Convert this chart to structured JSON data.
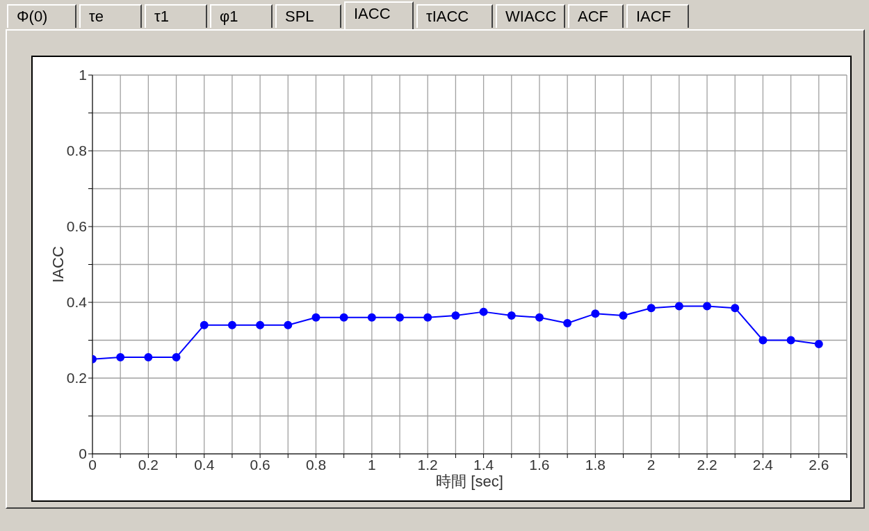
{
  "chart_data": {
    "type": "line",
    "xlabel": "時間 [sec]",
    "ylabel": "IACC",
    "annotations": [
      "Φ(0)",
      "τe",
      "τ1",
      "φ1",
      "SPL",
      "IACC",
      "τIACC",
      "WIACC",
      "ACF",
      "IACF"
    ],
    "x": [
      0,
      0.1,
      0.2,
      0.3,
      0.4,
      0.5,
      0.6,
      0.7,
      0.8,
      0.9,
      1,
      1.1,
      1.2,
      1.3,
      1.4,
      1.5,
      1.6,
      1.7,
      1.8,
      1.9,
      2,
      2.1,
      2.2,
      2.3,
      2.4,
      2.5,
      2.6
    ],
    "series": [
      {
        "color": "#0000ff",
        "values": [
          0.25,
          0.255,
          0.255,
          0.255,
          0.34,
          0.34,
          0.34,
          0.34,
          0.36,
          0.36,
          0.36,
          0.36,
          0.36,
          0.365,
          0.375,
          0.365,
          0.36,
          0.345,
          0.37,
          0.365,
          0.385,
          0.39,
          0.39,
          0.385,
          0.3,
          0.3,
          0.29
        ]
      }
    ],
    "xlim": [
      0,
      2.7
    ],
    "xticks": [
      0,
      {
        "value": 0.1,
        "label": null
      },
      0.2,
      {
        "value": 0.3,
        "label": null
      },
      0.4,
      {
        "value": 0.5,
        "label": null
      },
      0.6,
      {
        "value": 0.7,
        "label": null
      },
      0.8,
      {
        "value": 0.9,
        "label": null
      },
      1,
      {
        "value": 1.1,
        "label": null
      },
      1.2,
      {
        "value": 1.3,
        "label": null
      },
      1.4,
      {
        "value": 1.5,
        "label": null
      },
      1.6,
      {
        "value": 1.7,
        "label": null
      },
      1.8,
      {
        "value": 1.9,
        "label": null
      },
      2,
      {
        "value": 2.1,
        "label": null
      },
      2.2,
      {
        "value": 2.3,
        "label": null
      },
      2.4,
      {
        "value": 2.5,
        "label": null
      },
      2.6,
      {
        "value": 2.7,
        "label": null
      }
    ],
    "ylim": [
      0,
      1
    ],
    "yticks": [
      0,
      {
        "value": 0.1,
        "label": null
      },
      0.2,
      {
        "value": 0.3,
        "label": null
      },
      0.4,
      {
        "value": 0.5,
        "label": null
      },
      0.6,
      {
        "value": 0.7,
        "label": null
      },
      0.8,
      {
        "value": 0.9,
        "label": null
      },
      1
    ],
    "grid": true,
    "marker": "circle"
  }
}
